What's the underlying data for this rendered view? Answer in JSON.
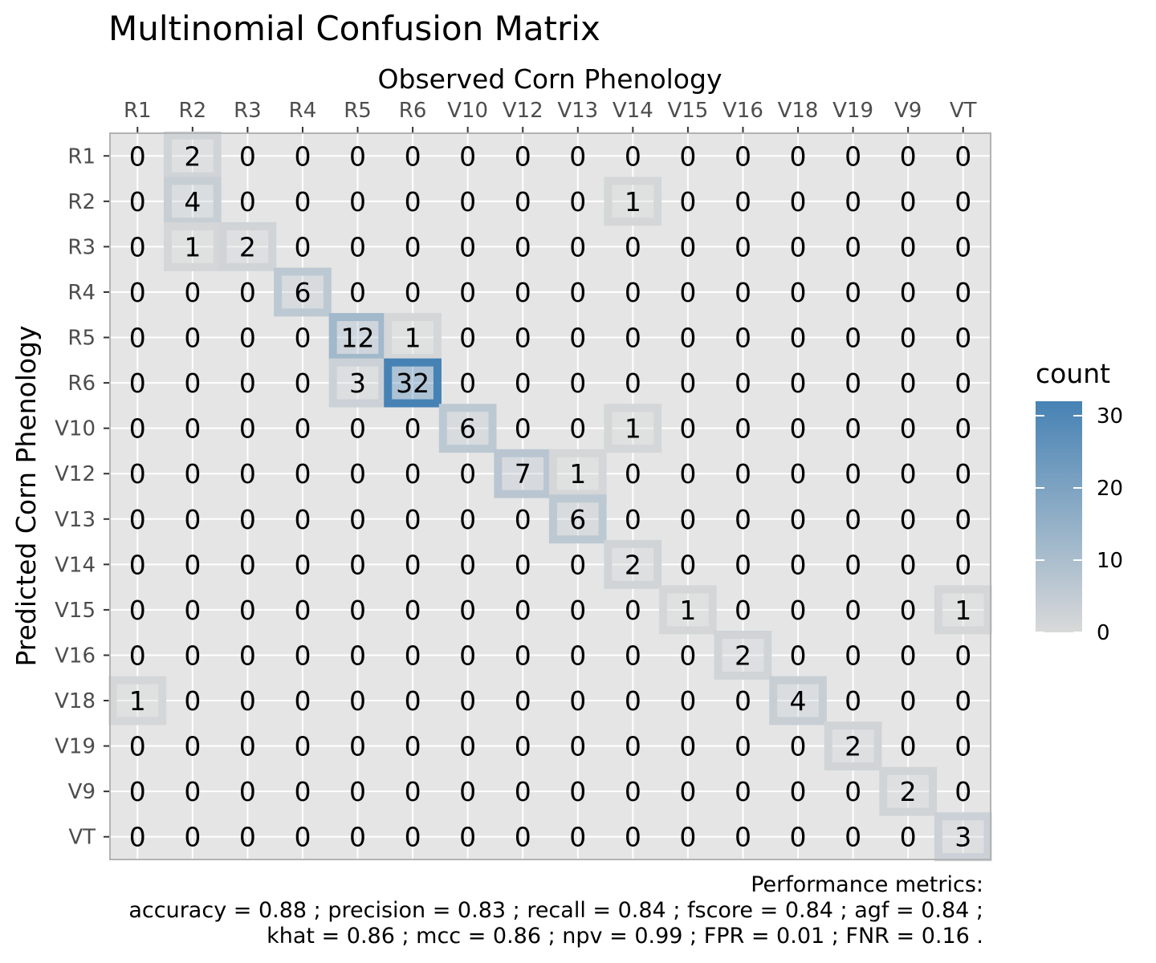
{
  "chart_data": {
    "type": "heatmap",
    "title": "Multinomial Confusion Matrix",
    "xlabel": "Observed Corn Phenology",
    "ylabel": "Predicted Corn Phenology",
    "x_categories": [
      "R1",
      "R2",
      "R3",
      "R4",
      "R5",
      "R6",
      "V10",
      "V12",
      "V13",
      "V14",
      "V15",
      "V16",
      "V18",
      "V19",
      "V9",
      "VT"
    ],
    "y_categories": [
      "R1",
      "R2",
      "R3",
      "R4",
      "R5",
      "R6",
      "V10",
      "V12",
      "V13",
      "V14",
      "V15",
      "V16",
      "V18",
      "V19",
      "V9",
      "VT"
    ],
    "matrix": [
      [
        0,
        2,
        0,
        0,
        0,
        0,
        0,
        0,
        0,
        0,
        0,
        0,
        0,
        0,
        0,
        0
      ],
      [
        0,
        4,
        0,
        0,
        0,
        0,
        0,
        0,
        0,
        1,
        0,
        0,
        0,
        0,
        0,
        0
      ],
      [
        0,
        1,
        2,
        0,
        0,
        0,
        0,
        0,
        0,
        0,
        0,
        0,
        0,
        0,
        0,
        0
      ],
      [
        0,
        0,
        0,
        6,
        0,
        0,
        0,
        0,
        0,
        0,
        0,
        0,
        0,
        0,
        0,
        0
      ],
      [
        0,
        0,
        0,
        0,
        12,
        1,
        0,
        0,
        0,
        0,
        0,
        0,
        0,
        0,
        0,
        0
      ],
      [
        0,
        0,
        0,
        0,
        3,
        32,
        0,
        0,
        0,
        0,
        0,
        0,
        0,
        0,
        0,
        0
      ],
      [
        0,
        0,
        0,
        0,
        0,
        0,
        6,
        0,
        0,
        1,
        0,
        0,
        0,
        0,
        0,
        0
      ],
      [
        0,
        0,
        0,
        0,
        0,
        0,
        0,
        7,
        1,
        0,
        0,
        0,
        0,
        0,
        0,
        0
      ],
      [
        0,
        0,
        0,
        0,
        0,
        0,
        0,
        0,
        6,
        0,
        0,
        0,
        0,
        0,
        0,
        0
      ],
      [
        0,
        0,
        0,
        0,
        0,
        0,
        0,
        0,
        0,
        2,
        0,
        0,
        0,
        0,
        0,
        0
      ],
      [
        0,
        0,
        0,
        0,
        0,
        0,
        0,
        0,
        0,
        0,
        1,
        0,
        0,
        0,
        0,
        1
      ],
      [
        0,
        0,
        0,
        0,
        0,
        0,
        0,
        0,
        0,
        0,
        0,
        2,
        0,
        0,
        0,
        0
      ],
      [
        1,
        0,
        0,
        0,
        0,
        0,
        0,
        0,
        0,
        0,
        0,
        0,
        4,
        0,
        0,
        0
      ],
      [
        0,
        0,
        0,
        0,
        0,
        0,
        0,
        0,
        0,
        0,
        0,
        0,
        0,
        2,
        0,
        0
      ],
      [
        0,
        0,
        0,
        0,
        0,
        0,
        0,
        0,
        0,
        0,
        0,
        0,
        0,
        0,
        2,
        0
      ],
      [
        0,
        0,
        0,
        0,
        0,
        0,
        0,
        0,
        0,
        0,
        0,
        0,
        0,
        0,
        0,
        3
      ]
    ],
    "legend": {
      "title": "count",
      "ticks": [
        0,
        10,
        20,
        30
      ],
      "range": [
        0,
        32
      ],
      "placement": "right"
    },
    "x_axis_position": "top",
    "colors": {
      "low": "#d9d9d9",
      "high": "#4682b4",
      "panel_background": "#e5e5e5",
      "panel_border": "#b3b3b3",
      "grid": "#ffffff"
    },
    "caption": [
      "Performance metrics:",
      "accuracy  =  0.88 ;  precision  =  0.83 ;  recall  =  0.84 ;  fscore  =  0.84 ;  agf  =  0.84 ;",
      "khat  =  0.86 ;  mcc  =  0.86 ;  npv  =  0.99 ;  FPR  =  0.01 ;  FNR  =  0.16 ."
    ]
  }
}
